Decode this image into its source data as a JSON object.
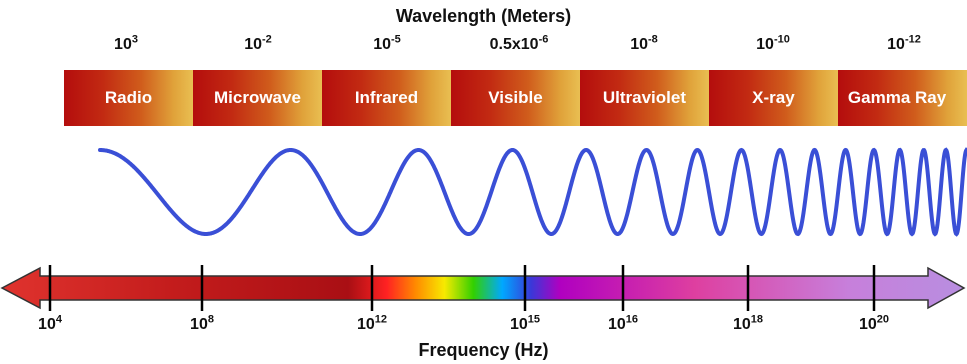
{
  "title": "Wavelength (Meters)",
  "wavelengths": [
    {
      "base": "10",
      "exp": "3"
    },
    {
      "base": "10",
      "exp": "-2"
    },
    {
      "base": "10",
      "exp": "-5"
    },
    {
      "base": "0.5x10",
      "exp": "-6"
    },
    {
      "base": "10",
      "exp": "-8"
    },
    {
      "base": "10",
      "exp": "-10"
    },
    {
      "base": "10",
      "exp": "-12"
    }
  ],
  "bands": [
    "Radio",
    "Microwave",
    "Infrared",
    "Visible",
    "Ultraviolet",
    "X-ray",
    "Gamma Ray"
  ],
  "frequency": {
    "label": "Frequency (Hz)",
    "ticks": [
      {
        "base": "10",
        "exp": "4"
      },
      {
        "base": "10",
        "exp": "8"
      },
      {
        "base": "10",
        "exp": "12"
      },
      {
        "base": "10",
        "exp": "15"
      },
      {
        "base": "10",
        "exp": "16"
      },
      {
        "base": "10",
        "exp": "18"
      },
      {
        "base": "10",
        "exp": "20"
      }
    ]
  },
  "colors": {
    "wave": "#3a4fd6",
    "band_dark": "#b40d0d",
    "band_light": "#e9bf52",
    "arrow_left": "#e0332e",
    "arrow_right": "#b88ee0"
  }
}
